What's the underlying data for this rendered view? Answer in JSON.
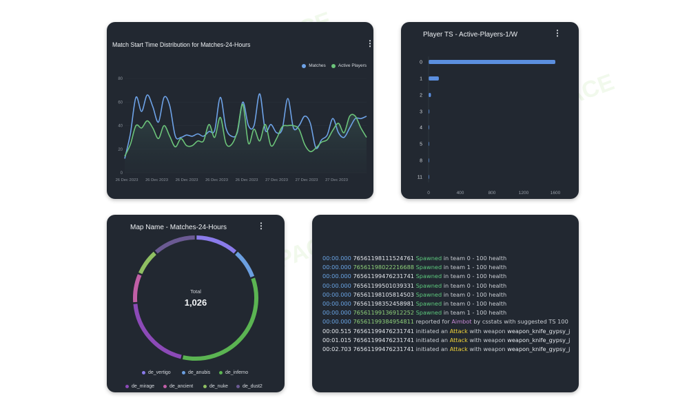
{
  "watermark": "AI TALENT SPACE",
  "line_card": {
    "title": "Match Start Time Distribution for Matches-24-Hours",
    "legend": [
      {
        "label": "Matches",
        "color": "#6ea3e8"
      },
      {
        "label": "Active Players",
        "color": "#6cc47a"
      }
    ]
  },
  "bar_card": {
    "title": "Player TS - Active-Players-1/W"
  },
  "donut_card": {
    "title": "Map Name - Matches-24-Hours",
    "center_label": "Total",
    "center_value": "1,026"
  },
  "log_card": {
    "lines": [
      {
        "ts": "00:00.000",
        "id": "76561198111524761",
        "id_style": "steam-white",
        "action": "Spawned",
        "rest": "in team 0 - 100 health",
        "ts_style": "ts"
      },
      {
        "ts": "00:00.000",
        "id": "76561198022216688",
        "id_style": "steam-green",
        "action": "Spawned",
        "rest": "in team 1 - 100 health",
        "ts_style": "ts"
      },
      {
        "ts": "00:00.000",
        "id": "76561199476231741",
        "id_style": "steam-white",
        "action": "Spawned",
        "rest": "in team 0 - 100 health",
        "ts_style": "ts"
      },
      {
        "ts": "00:00.000",
        "id": "76561199501039331",
        "id_style": "steam-white",
        "action": "Spawned",
        "rest": "in team 0 - 100 health",
        "ts_style": "ts"
      },
      {
        "ts": "00:00.000",
        "id": "76561198105814503",
        "id_style": "steam-white",
        "action": "Spawned",
        "rest": "in team 0 - 100 health",
        "ts_style": "ts"
      },
      {
        "ts": "00:00.000",
        "id": "76561198352458981",
        "id_style": "steam-white",
        "action": "Spawned",
        "rest": "in team 0 - 100 health",
        "ts_style": "ts"
      },
      {
        "ts": "00:00.000",
        "id": "76561199136912252",
        "id_style": "steam-green",
        "action": "Spawned",
        "rest": "in team 1 - 100 health",
        "ts_style": "ts"
      }
    ],
    "report": {
      "ts": "00:00.000",
      "id": "76561199384954811",
      "pre": "reported for",
      "cheat": "Aimbot",
      "post": "by csstats with suggested TS 100"
    },
    "attacks": [
      {
        "ts": "00:00.515",
        "id": "76561199476231741",
        "pre": "initiated an",
        "action": "Attack",
        "mid": "with weapon",
        "weapon": "weapon_knife_gypsy_j"
      },
      {
        "ts": "00:01.015",
        "id": "76561199476231741",
        "pre": "initiated an",
        "action": "Attack",
        "mid": "with weapon",
        "weapon": "weapon_knife_gypsy_j"
      },
      {
        "ts": "00:02.703",
        "id": "76561199476231741",
        "pre": "initiated an",
        "action": "Attack",
        "mid": "with weapon",
        "weapon": "weapon_knife_gypsy_j"
      }
    ]
  },
  "chart_data": [
    {
      "type": "line",
      "title": "Match Start Time Distribution for Matches-24-Hours",
      "ylim": [
        0,
        80
      ],
      "yticks": [
        0,
        20,
        40,
        60,
        80
      ],
      "xticklabels": [
        "26 Dec 2023",
        "26 Dec 2023",
        "26 Dec 2023",
        "26 Dec 2023",
        "26 Dec 2023",
        "27 Dec 2023",
        "27 Dec 2023",
        "27 Dec 2023"
      ],
      "series": [
        {
          "name": "Matches",
          "color": "#6ea3e8",
          "values": [
            12,
            33,
            64,
            52,
            66,
            56,
            43,
            64,
            57,
            31,
            30,
            32,
            31,
            33,
            31,
            35,
            36,
            64,
            38,
            31,
            34,
            60,
            40,
            40,
            67,
            36,
            41,
            34,
            37,
            63,
            38,
            40,
            48,
            42,
            21,
            28,
            32,
            46,
            34,
            30,
            38,
            46,
            46,
            48
          ]
        },
        {
          "name": "Active Players",
          "color": "#6cc47a",
          "values": [
            14,
            24,
            40,
            38,
            44,
            38,
            29,
            40,
            31,
            22,
            29,
            23,
            23,
            27,
            27,
            41,
            30,
            47,
            25,
            24,
            35,
            58,
            25,
            37,
            27,
            41,
            23,
            29,
            39,
            40,
            40,
            37,
            24,
            18,
            21,
            26,
            28,
            36,
            42,
            34,
            48,
            48,
            38,
            30
          ]
        }
      ]
    },
    {
      "type": "bar",
      "title": "Player TS - Active-Players-1/W",
      "orientation": "horizontal",
      "categories": [
        "0",
        "1",
        "2",
        "3",
        "4",
        "5",
        "8",
        "11"
      ],
      "values": [
        1600,
        130,
        30,
        10,
        4,
        3,
        2,
        2
      ],
      "xlim": [
        0,
        1600
      ],
      "xticks": [
        0,
        400,
        800,
        1200,
        1600
      ],
      "color": "#5b8fdf"
    },
    {
      "type": "pie",
      "title": "Map Name - Matches-24-Hours",
      "total": 1026,
      "categories": [
        "de_vertigo",
        "de_anubis",
        "de_inferno",
        "de_mirage",
        "de_ancient",
        "de_nuke",
        "de_dust2"
      ],
      "values": [
        118,
        82,
        350,
        206,
        80,
        72,
        118
      ],
      "colors": [
        "#8a7bea",
        "#6b9fe0",
        "#5bb452",
        "#8c4ab7",
        "#c05fa6",
        "#8fbf62",
        "#6b5a93"
      ]
    }
  ]
}
